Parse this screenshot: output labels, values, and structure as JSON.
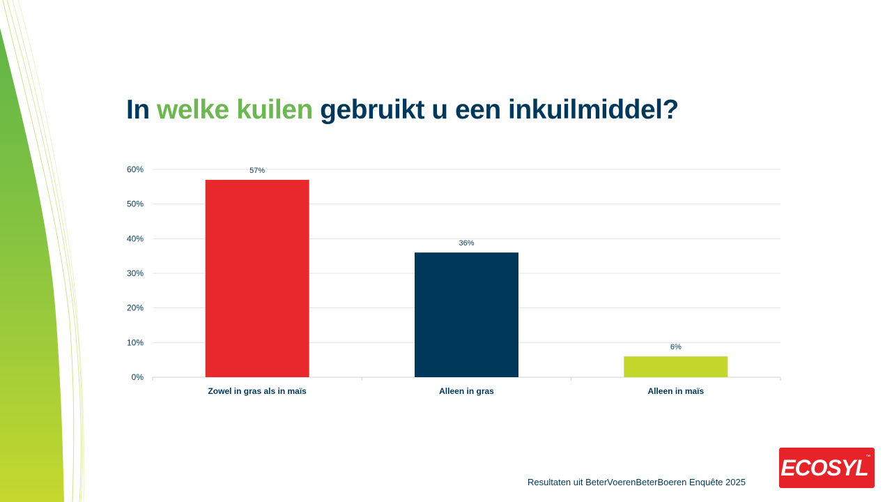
{
  "title": {
    "part1": "In ",
    "accent": "welke kuilen",
    "part2": " gebruikt u een inkuilmiddel?"
  },
  "footer": "Resultaten uit BeterVoerenBeterBoeren Enquête 2025",
  "logo": {
    "text": "ECOSYL",
    "tm": "™"
  },
  "colors": {
    "title": "#00385b",
    "accent": "#6cb751",
    "grid": "#e3e3e3"
  },
  "chart_data": {
    "type": "bar",
    "title": "In welke kuilen gebruikt u een inkuilmiddel?",
    "xlabel": "",
    "ylabel": "",
    "ylim": [
      0,
      60
    ],
    "yticks": [
      0,
      10,
      20,
      30,
      40,
      50,
      60
    ],
    "ytick_labels": [
      "0%",
      "10%",
      "20%",
      "30%",
      "40%",
      "50%",
      "60%"
    ],
    "grid": true,
    "legend": "none",
    "categories": [
      "Zowel in gras als in maïs",
      "Alleen in gras",
      "Alleen in maïs"
    ],
    "values": [
      57,
      36,
      6
    ],
    "data_labels": [
      "57%",
      "36%",
      "6%"
    ],
    "bar_colors": [
      "#e8282d",
      "#00385b",
      "#c3d62a"
    ]
  }
}
